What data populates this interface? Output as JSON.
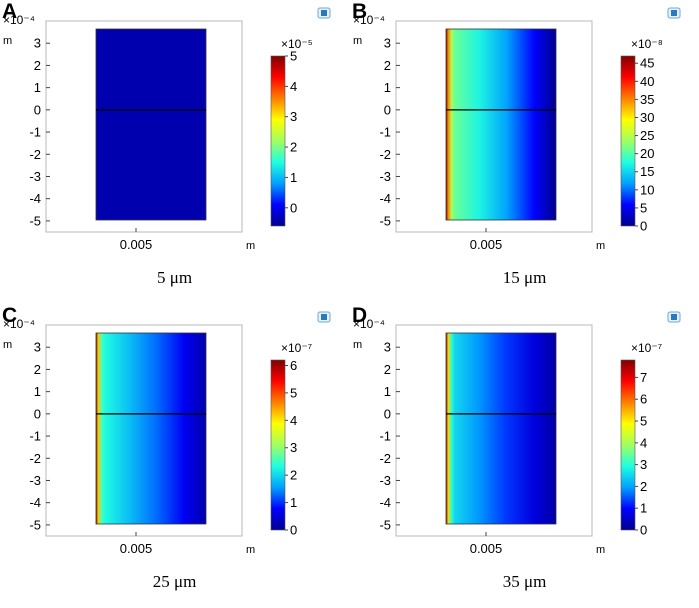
{
  "chart_data": [
    {
      "panel": "A",
      "type": "heatmap",
      "caption": "5 μm",
      "y_axis": {
        "exponent_label": "×10⁻⁴",
        "unit": "m",
        "ticks": [
          "3",
          "2",
          "1",
          "0",
          "-1",
          "-2",
          "-3",
          "-4",
          "-5"
        ],
        "tick_values": [
          3,
          2,
          1,
          0,
          -1,
          -2,
          -3,
          -4,
          -5
        ]
      },
      "x_axis": {
        "unit": "m",
        "ticks": [
          "0.005"
        ]
      },
      "colorbar": {
        "exponent_label": "×10⁻⁵",
        "ticks": [
          "5",
          "4",
          "3",
          "2",
          "1",
          "0"
        ],
        "tick_values": [
          5,
          4,
          3,
          2,
          1,
          0
        ],
        "range": [
          -0.6,
          5.0
        ]
      },
      "field": {
        "kind": "uniform",
        "value": -0.4
      }
    },
    {
      "panel": "B",
      "type": "heatmap",
      "caption": "15 μm",
      "y_axis": {
        "exponent_label": "×10⁻⁴",
        "unit": "m",
        "ticks": [
          "3",
          "2",
          "1",
          "0",
          "-1",
          "-2",
          "-3",
          "-4",
          "-5"
        ],
        "tick_values": [
          3,
          2,
          1,
          0,
          -1,
          -2,
          -3,
          -4,
          -5
        ]
      },
      "x_axis": {
        "unit": "m",
        "ticks": [
          "0.005"
        ]
      },
      "colorbar": {
        "exponent_label": "×10⁻⁸",
        "ticks": [
          "45",
          "40",
          "35",
          "30",
          "25",
          "20",
          "15",
          "10",
          "5",
          "0"
        ],
        "tick_values": [
          45,
          40,
          35,
          30,
          25,
          20,
          15,
          10,
          5,
          0
        ],
        "range": [
          0,
          47
        ]
      },
      "field": {
        "kind": "gradient",
        "values": [
          47,
          35,
          24,
          21,
          17,
          12,
          6,
          0
        ]
      }
    },
    {
      "panel": "C",
      "type": "heatmap",
      "caption": "25 μm",
      "y_axis": {
        "exponent_label": "×10⁻⁴",
        "unit": "m",
        "ticks": [
          "3",
          "2",
          "1",
          "0",
          "-1",
          "-2",
          "-3",
          "-4",
          "-5"
        ],
        "tick_values": [
          3,
          2,
          1,
          0,
          -1,
          -2,
          -3,
          -4,
          -5
        ]
      },
      "x_axis": {
        "unit": "m",
        "ticks": [
          "0.005"
        ]
      },
      "colorbar": {
        "exponent_label": "×10⁻⁷",
        "ticks": [
          "6",
          "5",
          "4",
          "3",
          "2",
          "1",
          "0"
        ],
        "tick_values": [
          6,
          5,
          4,
          3,
          2,
          1,
          0
        ],
        "range": [
          0,
          6.2
        ]
      },
      "field": {
        "kind": "gradient",
        "values": [
          6.2,
          4.2,
          2.6,
          2.3,
          1.8,
          1.3,
          0.7,
          0.2
        ]
      }
    },
    {
      "panel": "D",
      "type": "heatmap",
      "caption": "35 μm",
      "y_axis": {
        "exponent_label": "×10⁻⁴",
        "unit": "m",
        "ticks": [
          "3",
          "2",
          "1",
          "0",
          "-1",
          "-2",
          "-3",
          "-4",
          "-5"
        ],
        "tick_values": [
          3,
          2,
          1,
          0,
          -1,
          -2,
          -3,
          -4,
          -5
        ]
      },
      "x_axis": {
        "unit": "m",
        "ticks": [
          "0.005"
        ]
      },
      "colorbar": {
        "exponent_label": "×10⁻⁷",
        "ticks": [
          "7",
          "6",
          "5",
          "4",
          "3",
          "2",
          "1",
          "0"
        ],
        "tick_values": [
          7,
          6,
          5,
          4,
          3,
          2,
          1,
          0
        ],
        "range": [
          0,
          7.8
        ]
      },
      "field": {
        "kind": "gradient",
        "values": [
          7.8,
          5.2,
          3.0,
          2.5,
          1.9,
          1.3,
          0.7,
          0.2
        ]
      }
    }
  ],
  "colors": {
    "colormap": [
      "#00008f",
      "#0000ff",
      "#00a0ff",
      "#20ffe0",
      "#a0ff60",
      "#ffff00",
      "#ff8000",
      "#ff0000",
      "#800000"
    ]
  }
}
